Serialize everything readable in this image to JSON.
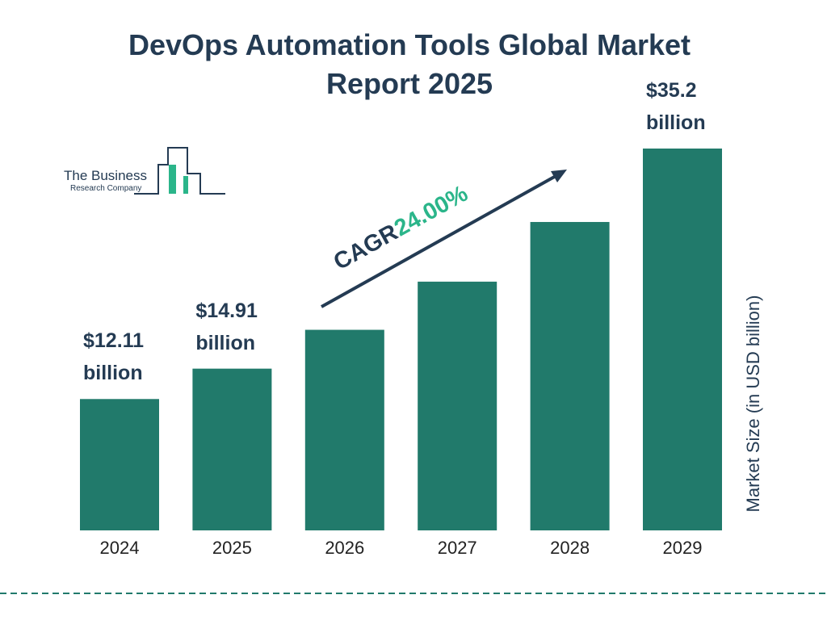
{
  "chart_data": {
    "type": "bar",
    "title": "DevOps Automation Tools Global Market Report 2025",
    "categories": [
      "2024",
      "2025",
      "2026",
      "2027",
      "2028",
      "2029"
    ],
    "values": [
      12.11,
      14.91,
      18.49,
      22.93,
      28.43,
      35.2
    ],
    "value_labels": [
      "$12.11 billion",
      "$14.91 billion",
      null,
      null,
      null,
      "$35.2 billion"
    ],
    "color": "#217a6b",
    "y_axis_label": "Market Size (in USD billion)",
    "annotation": {
      "label": "CAGR",
      "value": "24.00%"
    }
  },
  "logo": {
    "line1": "The Business",
    "line2": "Research Company"
  }
}
